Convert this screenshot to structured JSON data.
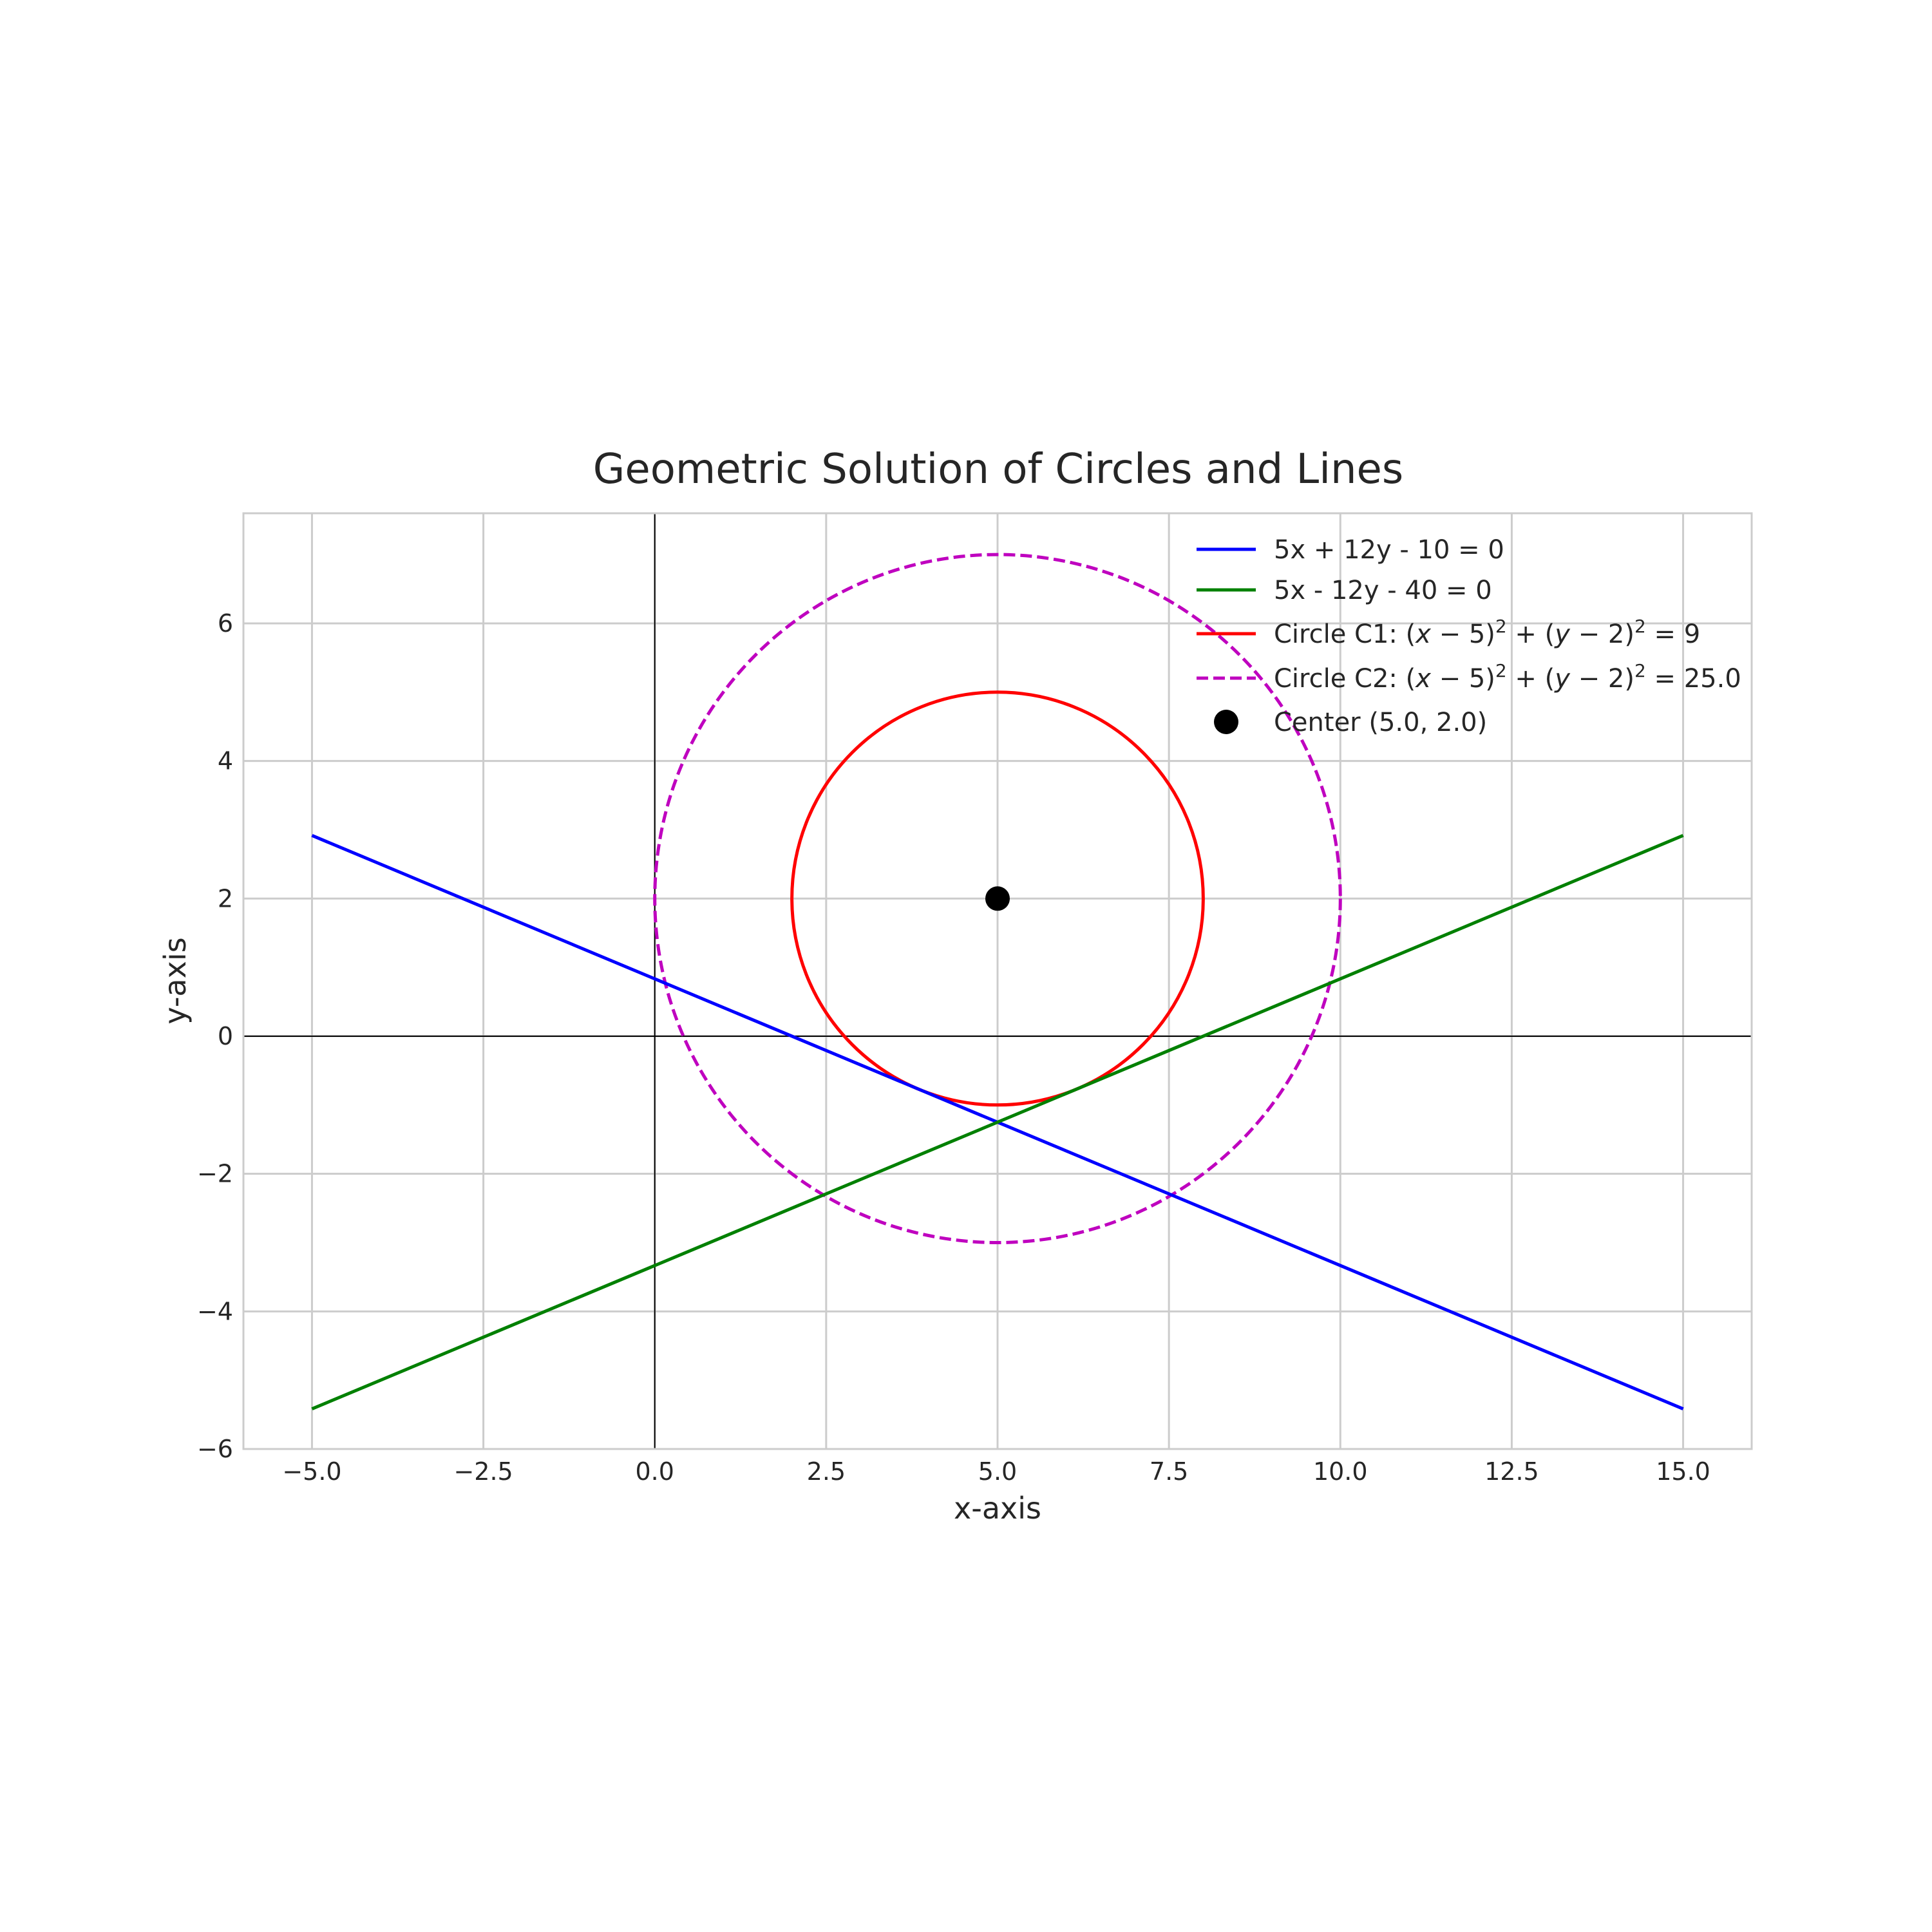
{
  "chart_data": {
    "type": "line",
    "title": "Geometric Solution of Circles and Lines",
    "xlabel": "x-axis",
    "ylabel": "y-axis",
    "xlim": [
      -6,
      16
    ],
    "ylim": [
      -6,
      7.6
    ],
    "grid": true,
    "legend_position": "top-right",
    "x_ticks": [
      -5.0,
      -2.5,
      0.0,
      2.5,
      5.0,
      7.5,
      10.0,
      12.5,
      15.0
    ],
    "x_tick_labels": [
      "−5.0",
      "−2.5",
      "0.0",
      "2.5",
      "5.0",
      "7.5",
      "10.0",
      "12.5",
      "15.0"
    ],
    "y_ticks": [
      -6,
      -4,
      -2,
      0,
      2,
      4,
      6
    ],
    "y_tick_labels": [
      "−6",
      "−4",
      "−2",
      "0",
      "2",
      "4",
      "6"
    ],
    "series": [
      {
        "name": "5x + 12y - 10 = 0",
        "kind": "line",
        "color": "#0000ff",
        "dash": "solid",
        "x": [
          -5,
          15
        ],
        "y": [
          2.9167,
          -5.4167
        ]
      },
      {
        "name": "5x - 12y - 40 = 0",
        "kind": "line",
        "color": "#008000",
        "dash": "solid",
        "x": [
          -5,
          15
        ],
        "y": [
          -5.4167,
          2.9167
        ]
      },
      {
        "name": "Circle C1: (x − 5)² + (y − 2)² = 9",
        "kind": "circle",
        "color": "#ff0000",
        "dash": "solid",
        "center": [
          5,
          2
        ],
        "radius": 3
      },
      {
        "name": "Circle C2: (x − 5)² + (y − 2)² = 25.0",
        "kind": "circle",
        "color": "#bf00bf",
        "dash": "dashed",
        "center": [
          5,
          2
        ],
        "radius": 5
      },
      {
        "name": "Center (5.0, 2.0)",
        "kind": "point",
        "color": "#000000",
        "x": [
          5.0
        ],
        "y": [
          2.0
        ]
      }
    ],
    "legend": {
      "line1": "5x + 12y - 10 = 0",
      "line2": "5x - 12y - 40 = 0",
      "circle1": {
        "prefix": "Circle C1: ",
        "rhs": "9"
      },
      "circle2": {
        "prefix": "Circle C2: ",
        "rhs": "25.0"
      },
      "center": "Center (5.0, 2.0)"
    }
  }
}
